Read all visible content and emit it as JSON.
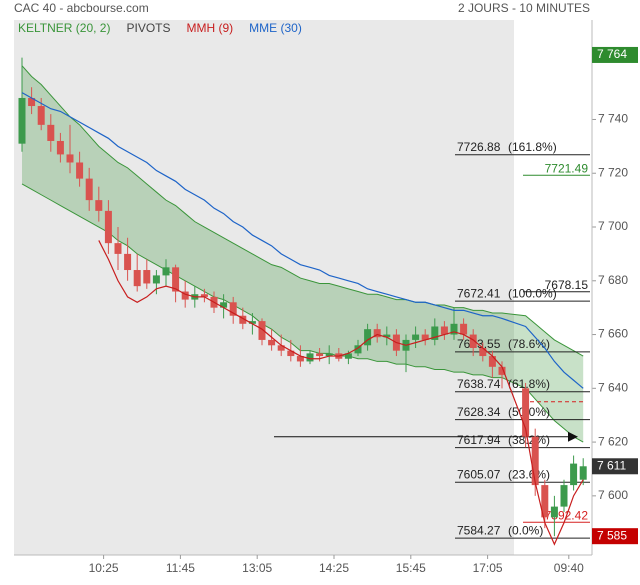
{
  "header": {
    "title": "CAC 40 - abcbourse.com",
    "period": "2 JOURS - 10 MINUTES"
  },
  "chart_data": {
    "type": "candlestick",
    "categories": [
      null,
      null,
      null,
      null,
      null,
      null,
      null,
      null,
      "10:25",
      null,
      null,
      null,
      null,
      null,
      null,
      null,
      "11:45",
      null,
      null,
      null,
      null,
      null,
      null,
      null,
      "13:05",
      null,
      null,
      null,
      null,
      null,
      null,
      null,
      "14:25",
      null,
      null,
      null,
      null,
      null,
      null,
      null,
      "15:45",
      null,
      null,
      null,
      null,
      null,
      null,
      null,
      "17:05",
      null,
      null,
      null,
      null,
      null,
      null,
      "09:40",
      null,
      null
    ],
    "ohlc": {
      "up_color": "#3c9a4c",
      "down_color": "#d9534f",
      "open": [
        7731,
        7748,
        7745,
        7738,
        7732,
        7727,
        7724,
        7718,
        7710,
        7706,
        7694,
        7690,
        7684,
        7684,
        7679,
        7682,
        7685,
        7676,
        7673,
        7675,
        7674,
        7670,
        7672,
        7667,
        7664,
        7665,
        7658,
        7656,
        7654,
        7652,
        7650,
        7653,
        7652,
        7653,
        7651,
        7653,
        7656,
        7662,
        7659,
        7660,
        7654,
        7658,
        7660,
        7658,
        7663,
        7660,
        7664,
        7660,
        7655,
        7652,
        7648,
        7640,
        7622,
        7604,
        7592,
        7596,
        7604,
        7606
      ],
      "high": [
        7763,
        7752,
        7748,
        7742,
        7735,
        7738,
        7728,
        7722,
        7715,
        7710,
        7700,
        7696,
        7690,
        7688,
        7684,
        7688,
        7686,
        7680,
        7678,
        7677,
        7676,
        7675,
        7674,
        7670,
        7668,
        7666,
        7662,
        7660,
        7658,
        7656,
        7654,
        7655,
        7656,
        7655,
        7654,
        7658,
        7664,
        7664,
        7663,
        7662,
        7660,
        7663,
        7662,
        7666,
        7665,
        7670,
        7666,
        7662,
        7657,
        7654,
        7650,
        7642,
        7625,
        7606,
        7600,
        7606,
        7615,
        7614
      ],
      "low": [
        7728,
        7742,
        7736,
        7728,
        7724,
        7720,
        7715,
        7706,
        7702,
        7690,
        7684,
        7680,
        7676,
        7677,
        7675,
        7678,
        7672,
        7670,
        7670,
        7672,
        7668,
        7666,
        7664,
        7662,
        7660,
        7656,
        7654,
        7652,
        7650,
        7648,
        7649,
        7650,
        7649,
        7650,
        7649,
        7652,
        7654,
        7657,
        7656,
        7652,
        7646,
        7655,
        7656,
        7656,
        7658,
        7658,
        7658,
        7652,
        7650,
        7644,
        7640,
        7618,
        7600,
        7588,
        7585,
        7594,
        7602,
        7604
      ],
      "close": [
        7748,
        7745,
        7738,
        7732,
        7727,
        7724,
        7718,
        7710,
        7706,
        7694,
        7690,
        7684,
        7678,
        7679,
        7682,
        7685,
        7676,
        7673,
        7675,
        7674,
        7670,
        7672,
        7667,
        7664,
        7665,
        7658,
        7656,
        7654,
        7652,
        7650,
        7653,
        7652,
        7653,
        7651,
        7653,
        7656,
        7662,
        7659,
        7660,
        7654,
        7658,
        7660,
        7658,
        7663,
        7660,
        7664,
        7660,
        7655,
        7652,
        7648,
        7645,
        7622,
        7604,
        7592,
        7596,
        7604,
        7612,
        7611
      ]
    },
    "indicators": [
      {
        "name": "KELTNER (20, 2)",
        "color": "#3a953a",
        "upper": [
          7760,
          7756,
          7753,
          7749,
          7745,
          7741,
          7738,
          7734,
          7730,
          7727,
          7724,
          7722,
          7719,
          7716,
          7713,
          7710,
          7708,
          7705,
          7702,
          7700,
          7698,
          7696,
          7694,
          7692,
          7690,
          7688,
          7686,
          7685,
          7683,
          7681,
          7680,
          7679,
          7679,
          7678,
          7677,
          7676,
          7675,
          7675,
          7674,
          7673,
          7673,
          7672,
          7672,
          7671,
          7671,
          7670,
          7670,
          7669,
          7669,
          7668,
          7668,
          7667,
          7664,
          7661,
          7658,
          7656,
          7654,
          7652
        ],
        "lower": [
          7716,
          7714,
          7712,
          7710,
          7708,
          7706,
          7704,
          7702,
          7700,
          7698,
          7695,
          7693,
          7690,
          7688,
          7686,
          7684,
          7682,
          7680,
          7678,
          7676,
          7674,
          7673,
          7671,
          7669,
          7667,
          7664,
          7662,
          7659,
          7657,
          7654,
          7654,
          7653,
          7653,
          7652,
          7652,
          7651,
          7651,
          7650,
          7650,
          7649,
          7649,
          7648,
          7648,
          7647,
          7647,
          7646,
          7646,
          7645,
          7645,
          7644,
          7644,
          7640,
          7636,
          7632,
          7628,
          7625,
          7622,
          7620
        ]
      },
      {
        "name": "PIVOTS",
        "color": "#444444"
      },
      {
        "name": "MMH (9)",
        "color": "#c81e1e",
        "values": [
          null,
          null,
          null,
          null,
          null,
          null,
          null,
          null,
          7695,
          7688,
          7680,
          7674,
          7672,
          7674,
          7677,
          7678,
          7677,
          7675,
          7674,
          7674,
          7672,
          7670,
          7668,
          7666,
          7664,
          7662,
          7659,
          7656,
          7654,
          7652,
          7651,
          7651,
          7652,
          7652,
          7653,
          7655,
          7658,
          7660,
          7659,
          7657,
          7656,
          7657,
          7658,
          7659,
          7660,
          7661,
          7660,
          7658,
          7655,
          7652,
          7648,
          7625,
          7605,
          7590,
          7582,
          7590,
          7600,
          7606
        ]
      },
      {
        "name": "MME (30)",
        "color": "#1e64c8",
        "values": [
          7750,
          7748,
          7746,
          7744,
          7743,
          7741,
          7739,
          7737,
          7735,
          7733,
          7730,
          7728,
          7726,
          7724,
          7721,
          7719,
          7717,
          7714,
          7712,
          7710,
          7707,
          7705,
          7702,
          7700,
          7697,
          7695,
          7693,
          7690,
          7688,
          7686,
          7685,
          7684,
          7682,
          7681,
          7680,
          7679,
          7677,
          7676,
          7675,
          7674,
          7673,
          7672,
          7672,
          7671,
          7670,
          7669,
          7669,
          7668,
          7667,
          7667,
          7666,
          7663,
          7659,
          7655,
          7650,
          7646,
          7643,
          7640
        ]
      }
    ],
    "levels": [
      {
        "value": 7726.88,
        "label": "(161.8%)"
      },
      {
        "value": 7672.41,
        "label": "(100.0%)"
      },
      {
        "value": 7653.55,
        "label": "(78.6%)"
      },
      {
        "value": 7638.74,
        "label": "(61.8%)"
      },
      {
        "value": 7628.34,
        "label": "(50.0%)"
      },
      {
        "value": 7617.94,
        "label": "(38.2%)"
      },
      {
        "value": 7605.07,
        "label": "(23.6%)"
      },
      {
        "value": 7584.27,
        "label": "(0.0%)"
      }
    ],
    "marked_prices": [
      {
        "value": 7721.49,
        "color": "#2e8b2e"
      },
      {
        "value": 7678.15,
        "color": "#222222"
      },
      {
        "value": 7592.42,
        "color": "#d62020"
      }
    ],
    "dashed_level": {
      "value": 7635,
      "color": "#d62020"
    },
    "arrow_level": 7622,
    "price_tags": [
      {
        "value": 7764,
        "label": "7 764",
        "color": "#2e8b2e"
      },
      {
        "value": 7611,
        "label": "7 611",
        "color": "#333333"
      },
      {
        "value": 7585,
        "label": "7 585",
        "color": "#c40000"
      }
    ],
    "ylim": [
      7578,
      7777
    ],
    "yticks": [
      {
        "value": 7600,
        "label": "7 600"
      },
      {
        "value": 7620,
        "label": "7 620"
      },
      {
        "value": 7640,
        "label": "7 640"
      },
      {
        "value": 7660,
        "label": "7 660"
      },
      {
        "value": 7680,
        "label": "7 680"
      },
      {
        "value": 7700,
        "label": "7 700"
      },
      {
        "value": 7720,
        "label": "7 720"
      },
      {
        "value": 7740,
        "label": "7 740"
      }
    ]
  }
}
